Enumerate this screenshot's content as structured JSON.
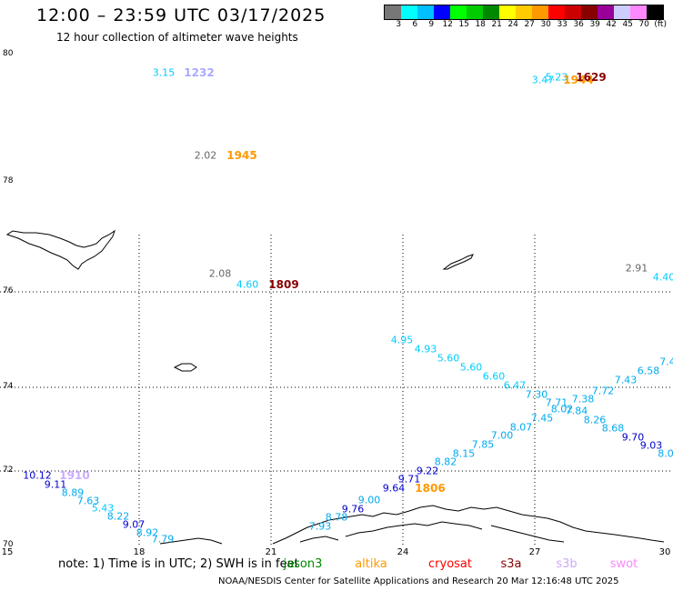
{
  "header": {
    "title": "12:00 – 23:59 UTC 03/17/2025",
    "subtitle": "12 hour collection of altimeter wave heights"
  },
  "colorbar": {
    "colors": [
      "#777777",
      "#00ffff",
      "#00bfff",
      "#0000ff",
      "#00ff00",
      "#00cc00",
      "#008800",
      "#ffff00",
      "#ffcc00",
      "#ff9900",
      "#ff0000",
      "#cc0000",
      "#880000",
      "#990099",
      "#ccccff",
      "#ff88ff",
      "#000000"
    ],
    "labels": [
      "3",
      "6",
      "9",
      "12",
      "15",
      "18",
      "21",
      "24",
      "27",
      "30",
      "33",
      "36",
      "39",
      "42",
      "45",
      "70",
      "(ft)"
    ]
  },
  "axes": {
    "lat_labels": [
      "80",
      "78",
      "76",
      "74",
      "72",
      "70"
    ],
    "lon_labels": [
      "15",
      "18",
      "21",
      "24",
      "27",
      "30"
    ]
  },
  "observations": [
    {
      "text": "3.15",
      "color": "#00ccff"
    },
    {
      "text": "1232",
      "color": "#aaaaff",
      "time": true
    },
    {
      "text": "2.02",
      "color": "#666666"
    },
    {
      "text": "1945",
      "color": "#ff9900",
      "time": true
    },
    {
      "text": "2.08",
      "color": "#666666"
    },
    {
      "text": "4.60",
      "color": "#00ccff"
    },
    {
      "text": "1809",
      "color": "#880000",
      "time": true
    },
    {
      "text": "2.91",
      "color": "#666666"
    },
    {
      "text": "4.40",
      "color": "#00ccff"
    },
    {
      "text": "3.47",
      "color": "#00ccff"
    },
    {
      "text": "5.23",
      "color": "#00ccff"
    },
    {
      "text": "1944",
      "color": "#ff9900",
      "time": true
    },
    {
      "text": "1629",
      "color": "#880000",
      "time": true
    },
    {
      "text": "4.95",
      "color": "#00ccff"
    },
    {
      "text": "4.93",
      "color": "#00ccff"
    },
    {
      "text": "5.60",
      "color": "#00ccff"
    },
    {
      "text": "5.60",
      "color": "#00ccff"
    },
    {
      "text": "6.60",
      "color": "#00ccff"
    },
    {
      "text": "6.47",
      "color": "#00ccff"
    },
    {
      "text": "7.30",
      "color": "#00aaee"
    },
    {
      "text": "7.71",
      "color": "#00aaee"
    },
    {
      "text": "8.02",
      "color": "#00aaee"
    },
    {
      "text": "7.84",
      "color": "#00aaee"
    },
    {
      "text": "8.26",
      "color": "#00aaee"
    },
    {
      "text": "8.68",
      "color": "#00aaee"
    },
    {
      "text": "9.70",
      "color": "#0000cc"
    },
    {
      "text": "9.03",
      "color": "#0000cc"
    },
    {
      "text": "8.0",
      "color": "#00aaee"
    },
    {
      "text": "7.4",
      "color": "#00aaee"
    },
    {
      "text": "6.58",
      "color": "#00aaee"
    },
    {
      "text": "7.43",
      "color": "#00aaee"
    },
    {
      "text": "7.72",
      "color": "#00aaee"
    },
    {
      "text": "7.38",
      "color": "#00aaee"
    },
    {
      "text": "7.45",
      "color": "#00aaee"
    },
    {
      "text": "8.07",
      "color": "#00aaee"
    },
    {
      "text": "7.00",
      "color": "#00aaee"
    },
    {
      "text": "7.85",
      "color": "#00aaee"
    },
    {
      "text": "8.15",
      "color": "#00aaee"
    },
    {
      "text": "8.82",
      "color": "#00aaee"
    },
    {
      "text": "9.22",
      "color": "#0000cc"
    },
    {
      "text": "9.71",
      "color": "#0000cc"
    },
    {
      "text": "9.64",
      "color": "#0000cc"
    },
    {
      "text": "1806",
      "color": "#ff9900",
      "time": true
    },
    {
      "text": "9.00",
      "color": "#00aaee"
    },
    {
      "text": "9.76",
      "color": "#0000cc"
    },
    {
      "text": "8.78",
      "color": "#00aaee"
    },
    {
      "text": "7.93",
      "color": "#00aaee"
    },
    {
      "text": "10.12",
      "color": "#0000cc"
    },
    {
      "text": "1910",
      "color": "#ccaaff",
      "time": true
    },
    {
      "text": "9.11",
      "color": "#0000cc"
    },
    {
      "text": "8.89",
      "color": "#00aaee"
    },
    {
      "text": "7.63",
      "color": "#00aaee"
    },
    {
      "text": "5.43",
      "color": "#00ccff"
    },
    {
      "text": "8.22",
      "color": "#00aaee"
    },
    {
      "text": "9.07",
      "color": "#0000cc"
    },
    {
      "text": "8.92",
      "color": "#00aaee"
    },
    {
      "text": "7.79",
      "color": "#00aaee"
    }
  ],
  "footer": {
    "note": "note:  1) Time is in UTC;  2) SWH is in feet",
    "missions": [
      {
        "name": "jason3",
        "color": "#008800"
      },
      {
        "name": "altika",
        "color": "#ff9900"
      },
      {
        "name": "cryosat",
        "color": "#ff0000"
      },
      {
        "name": "s3a",
        "color": "#880000"
      },
      {
        "name": "s3b",
        "color": "#ccaaff"
      },
      {
        "name": "swot",
        "color": "#ff88ff"
      }
    ],
    "credit": "NOAA/NESDIS Center for Satellite Applications and Research     20 Mar 12:16:48 UTC 2025"
  }
}
